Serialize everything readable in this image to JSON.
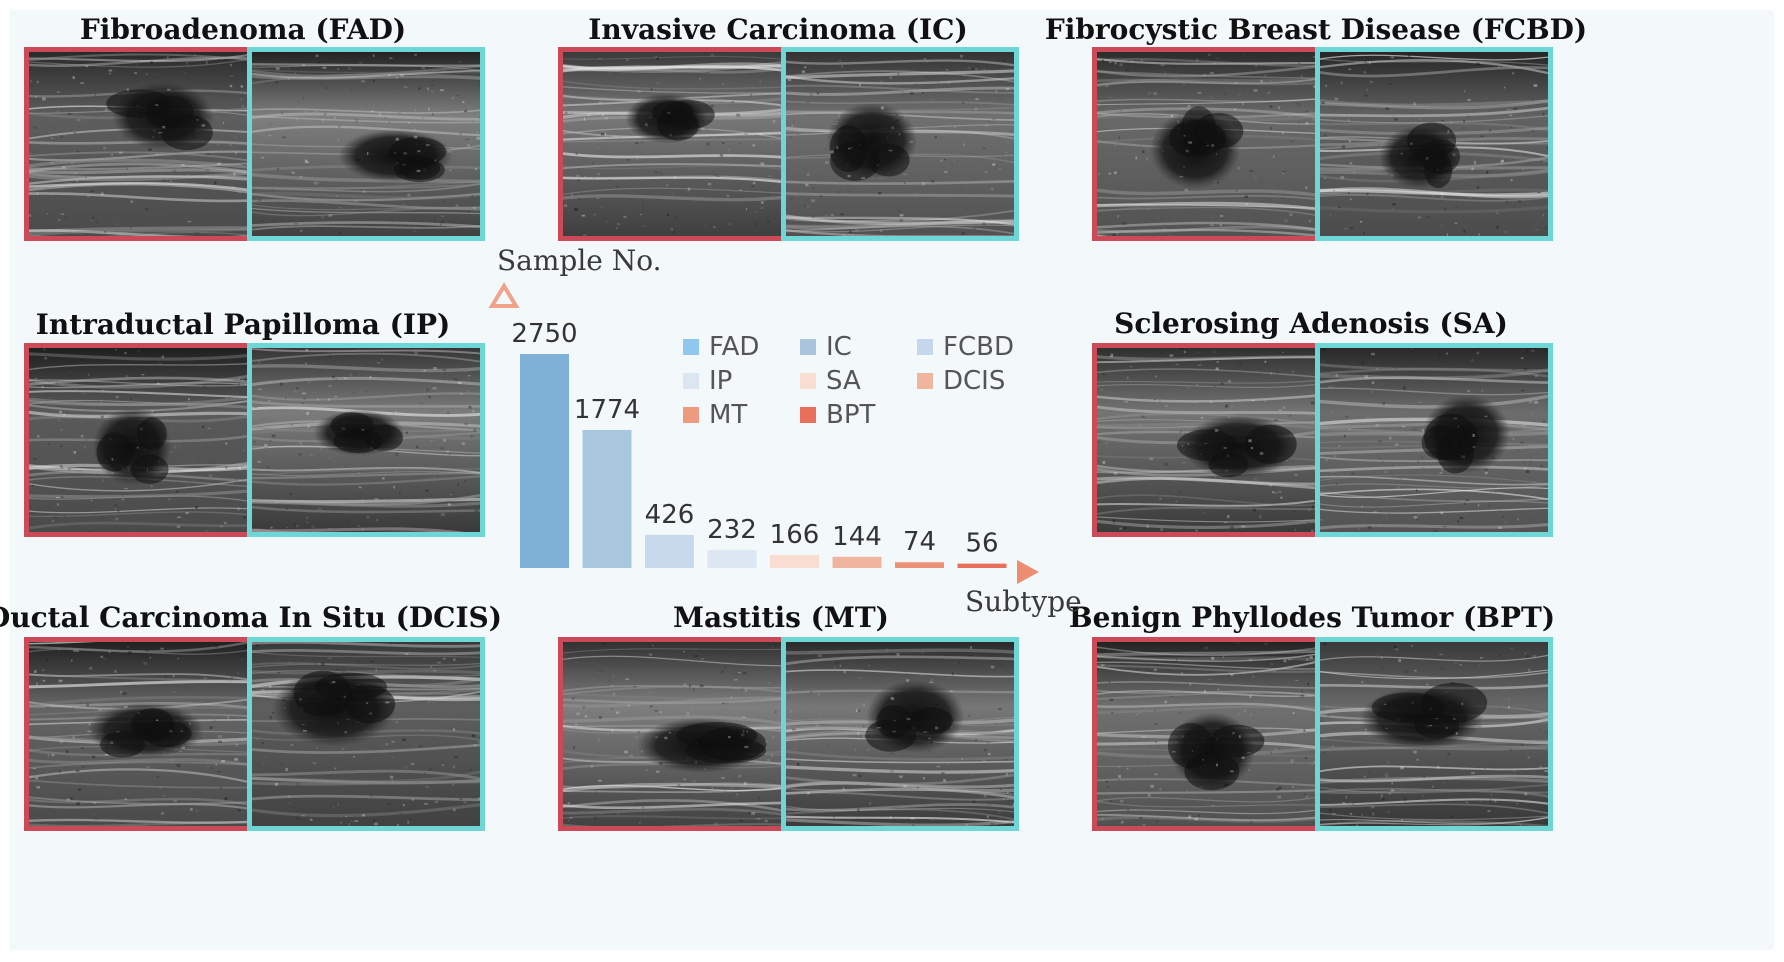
{
  "groups": [
    {
      "title": "Fibroadenoma (FAD)",
      "key": "fad"
    },
    {
      "title": "Invasive Carcinoma (IC)",
      "key": "ic"
    },
    {
      "title": "Fibrocystic Breast Disease (FCBD)",
      "key": "fcbd"
    },
    {
      "title": "Intraductal Papilloma (IP)",
      "key": "ip"
    },
    {
      "title": "Sclerosing Adenosis (SA)",
      "key": "sa"
    },
    {
      "title": "Ductal Carcinoma In Situ (DCIS)",
      "key": "dcis"
    },
    {
      "title": "Mastitis (MT)",
      "key": "mt"
    },
    {
      "title": "Benign Phyllodes Tumor (BPT)",
      "key": "bpt"
    }
  ],
  "frame_colors": {
    "left": "#cc4a57",
    "right": "#6fd6d6"
  },
  "chart_data": {
    "type": "bar",
    "xlabel": "Subtype",
    "ylabel": "Sample No.",
    "categories": [
      "FAD",
      "IC",
      "FCBD",
      "IP",
      "SA",
      "DCIS",
      "MT",
      "BPT"
    ],
    "values": [
      2750,
      1774,
      426,
      232,
      166,
      144,
      74,
      56
    ],
    "colors": [
      "#7fb0d6",
      "#a9c8e0",
      "#c9d9ec",
      "#dde7f3",
      "#f9ddd1",
      "#efb59f",
      "#ec9277",
      "#e8705a"
    ],
    "legend": {
      "columns": 3,
      "entries": [
        "FAD",
        "IC",
        "FCBD",
        "IP",
        "SA",
        "DCIS",
        "MT",
        "BPT"
      ],
      "swatch_colors": [
        "#8fc7ee",
        "#a9c4dd",
        "#c6d6ec",
        "#dbe6f2",
        "#f9ddd1",
        "#efb59f",
        "#ec9a80",
        "#e8705a"
      ]
    },
    "ylim": [
      0,
      2750
    ],
    "grid": false
  }
}
